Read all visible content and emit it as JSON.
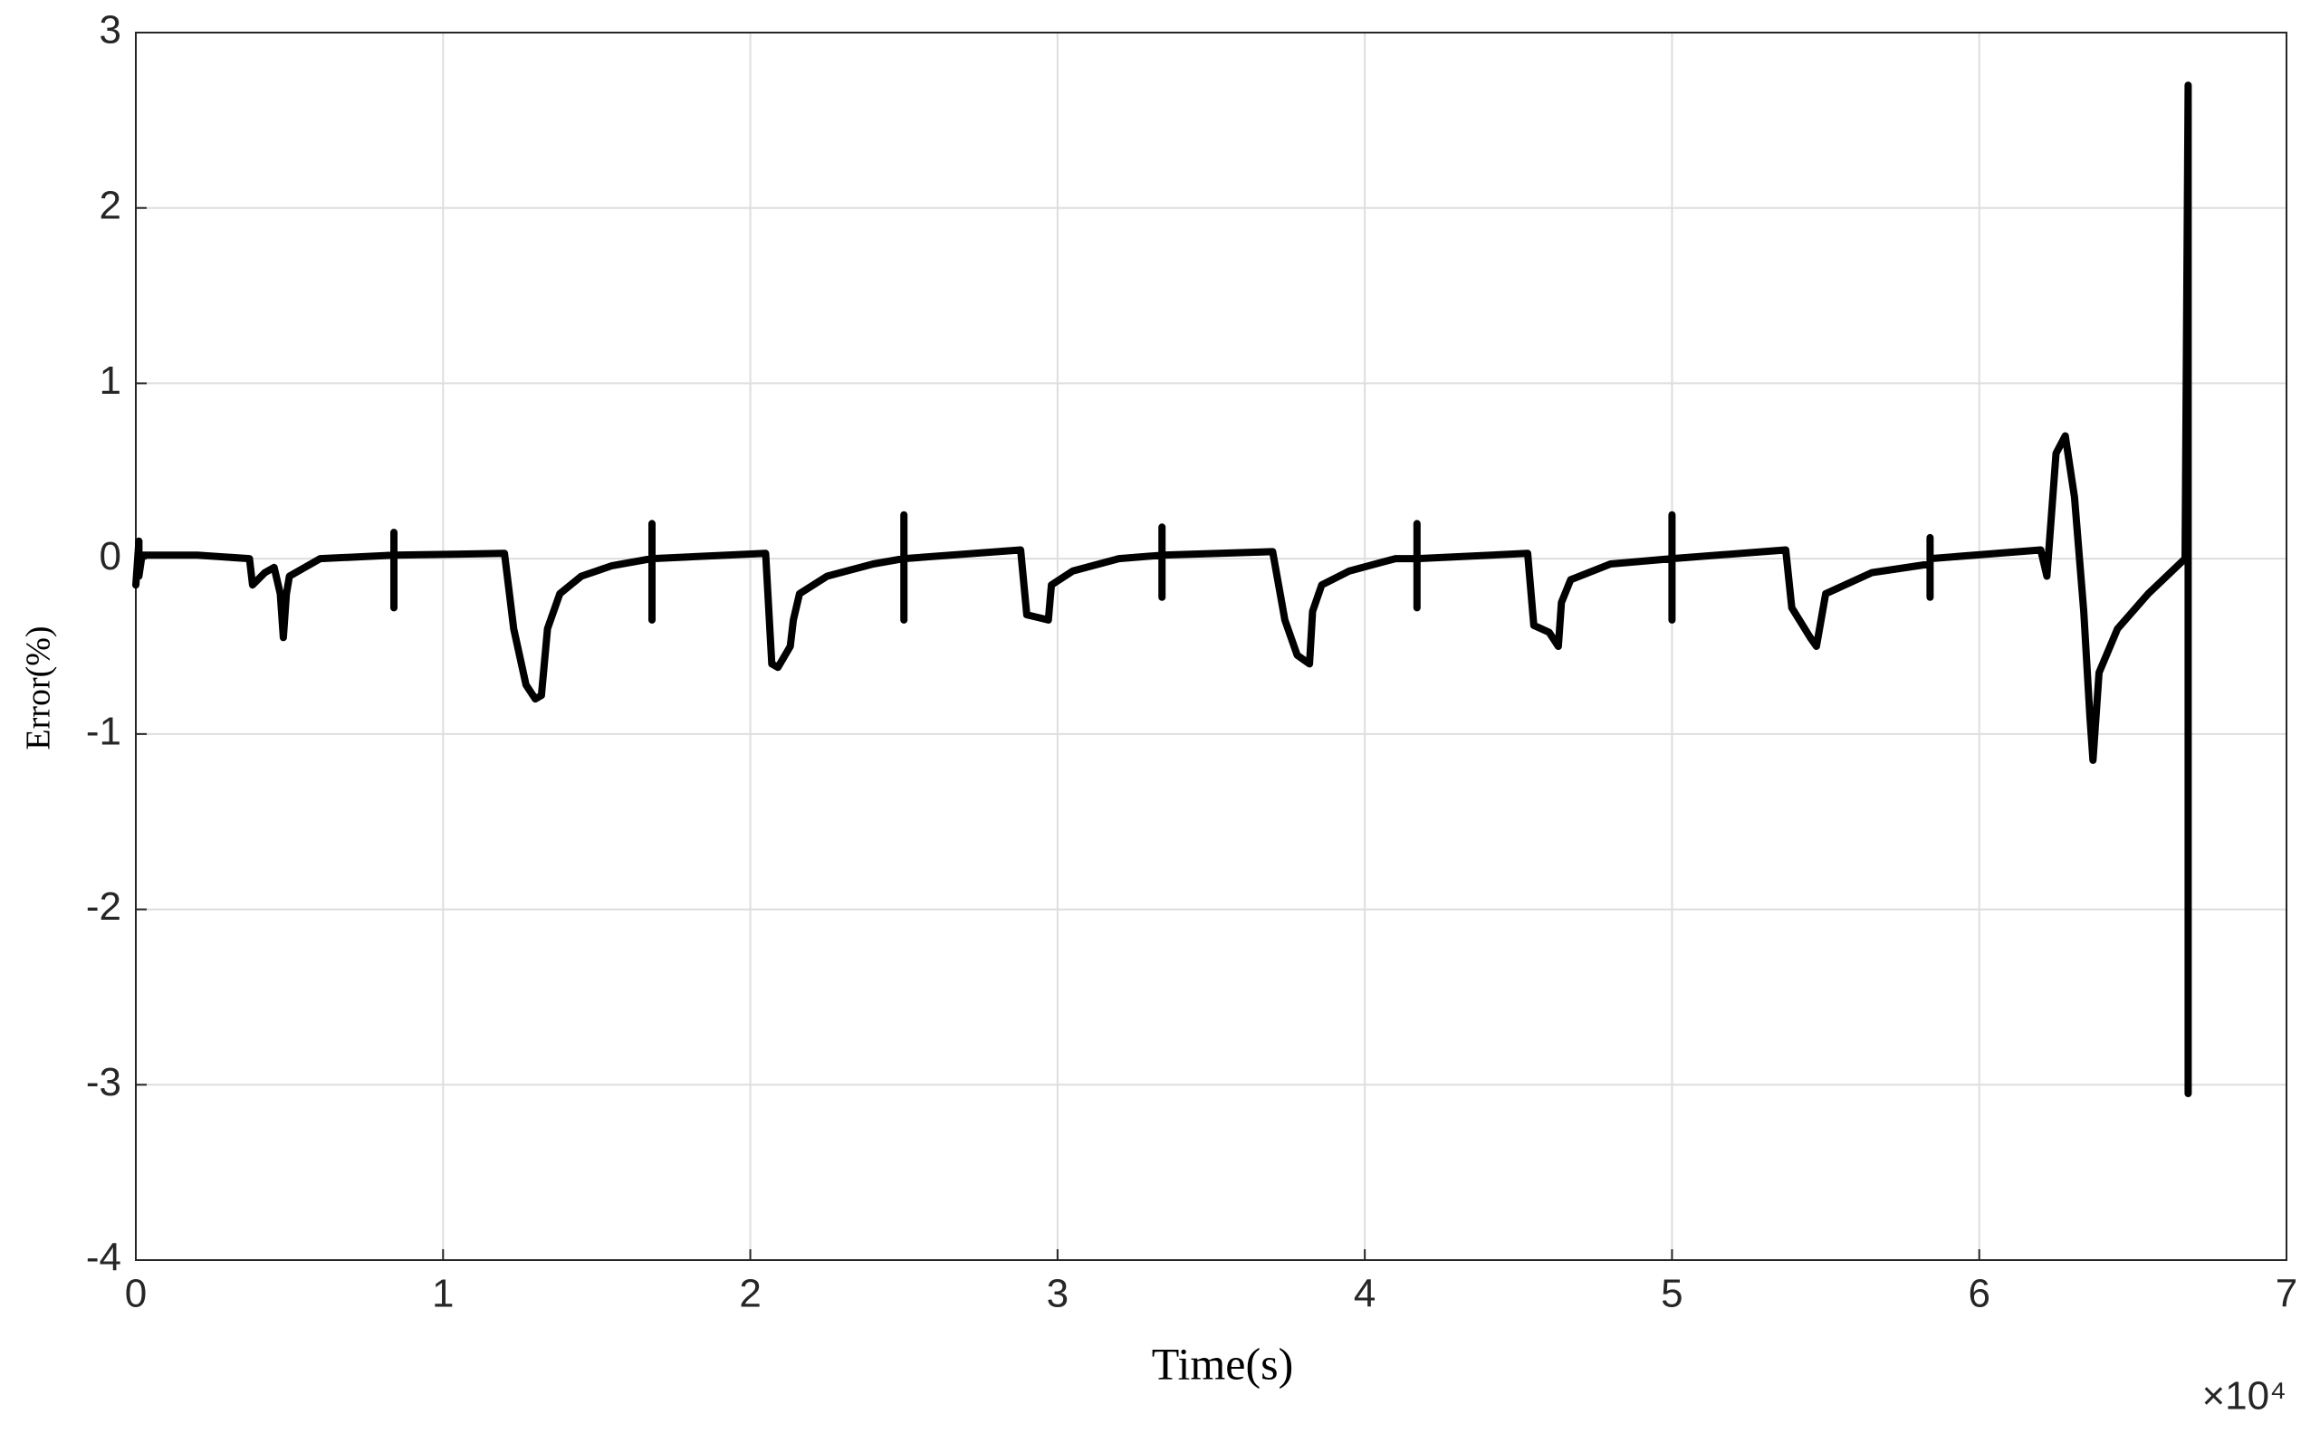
{
  "chart_data": {
    "type": "line",
    "xlabel": "Time(s)",
    "ylabel": "Error(%)",
    "x_exponent_label": "×10⁴",
    "xlim": [
      0,
      7
    ],
    "xticks": [
      0,
      1,
      2,
      3,
      4,
      5,
      6,
      7
    ],
    "ylim": [
      -4,
      3
    ],
    "yticks": [
      -4,
      -3,
      -2,
      -1,
      0,
      1,
      2,
      3
    ],
    "grid": true,
    "series": [
      {
        "name": "Error",
        "color": "#000000",
        "x": [
          0,
          0.01,
          0.01,
          0.02,
          0.05,
          0.2,
          0.37,
          0.38,
          0.42,
          0.45,
          0.47,
          0.48,
          0.49,
          0.5,
          0.55,
          0.6,
          0.84,
          0.84,
          0.84,
          0.84,
          1.2,
          1.23,
          1.27,
          1.3,
          1.32,
          1.34,
          1.38,
          1.45,
          1.55,
          1.68,
          1.68,
          1.68,
          1.68,
          2.05,
          2.07,
          2.09,
          2.13,
          2.14,
          2.16,
          2.25,
          2.4,
          2.5,
          2.5,
          2.5,
          2.5,
          2.88,
          2.9,
          2.97,
          2.98,
          3.05,
          3.2,
          3.34,
          3.34,
          3.34,
          3.34,
          3.7,
          3.74,
          3.78,
          3.82,
          3.83,
          3.86,
          3.95,
          4.1,
          4.17,
          4.17,
          4.17,
          4.17,
          4.53,
          4.55,
          4.6,
          4.63,
          4.64,
          4.67,
          4.8,
          5.0,
          5.0,
          5.0,
          5.0,
          5.37,
          5.39,
          5.45,
          5.47,
          5.5,
          5.65,
          5.84,
          5.84,
          5.84,
          5.84,
          6.2,
          6.22,
          6.25,
          6.28,
          6.31,
          6.34,
          6.36,
          6.37,
          6.39,
          6.45,
          6.55,
          6.67,
          6.68,
          6.68,
          6.68
        ],
        "values": [
          -0.15,
          0.1,
          -0.1,
          0.02,
          0.02,
          0.02,
          0.0,
          -0.15,
          -0.08,
          -0.05,
          -0.2,
          -0.45,
          -0.2,
          -0.1,
          -0.05,
          0.0,
          0.02,
          0.15,
          -0.28,
          0.02,
          0.03,
          -0.4,
          -0.72,
          -0.8,
          -0.78,
          -0.4,
          -0.2,
          -0.1,
          -0.04,
          0.0,
          0.2,
          -0.35,
          0.0,
          0.03,
          -0.6,
          -0.62,
          -0.5,
          -0.35,
          -0.2,
          -0.1,
          -0.03,
          0.0,
          0.25,
          -0.35,
          0.0,
          0.05,
          -0.32,
          -0.35,
          -0.15,
          -0.07,
          0.0,
          0.02,
          0.18,
          -0.22,
          0.02,
          0.04,
          -0.35,
          -0.55,
          -0.6,
          -0.3,
          -0.15,
          -0.07,
          0.0,
          0.0,
          0.2,
          -0.28,
          0.0,
          0.03,
          -0.38,
          -0.42,
          -0.5,
          -0.25,
          -0.12,
          -0.03,
          0.0,
          0.25,
          -0.35,
          0.0,
          0.05,
          -0.28,
          -0.45,
          -0.5,
          -0.2,
          -0.08,
          -0.03,
          0.12,
          -0.22,
          0.0,
          0.05,
          -0.1,
          0.6,
          0.7,
          0.35,
          -0.3,
          -0.9,
          -1.15,
          -0.65,
          -0.4,
          -0.2,
          0.0,
          2.7,
          -3.05,
          2.7
        ]
      }
    ]
  }
}
